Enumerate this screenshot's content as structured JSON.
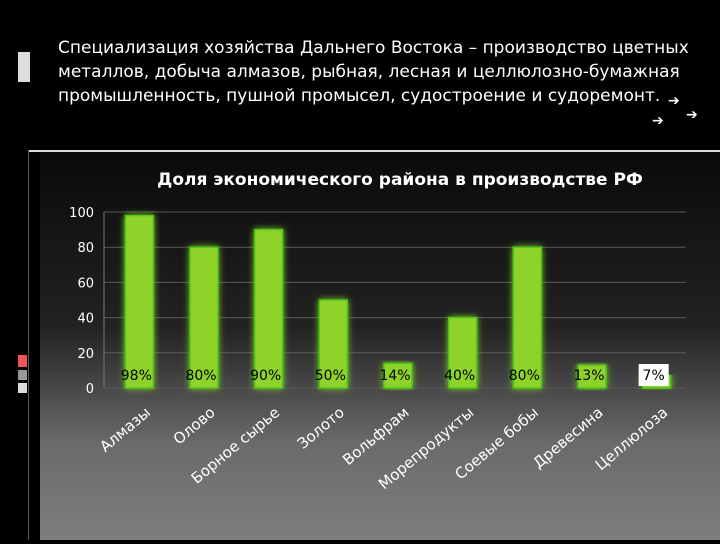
{
  "slide": {
    "header": "Специализация хозяйства Дальнего Востока – производство цветных металлов, добыча алмазов, рыбная, лесная и целлюлозно-бумажная промышленность, пушной промысел, судостроение и судоремонт.",
    "arrow_glyph": "➔"
  },
  "colors": {
    "bar_fill": "#8ed32a",
    "bar_glow": "#4fc41a",
    "background": "#000000",
    "text": "#ffffff"
  },
  "chart_data": {
    "type": "bar",
    "title": "Доля экономического района в производстве РФ",
    "categories": [
      "Алмазы",
      "Олово",
      "Борное сырье",
      "Золото",
      "Вольфрам",
      "Морепродукты",
      "Соевые бобы",
      "Древесина",
      "Целлюлоза"
    ],
    "values": [
      98,
      80,
      90,
      50,
      14,
      40,
      80,
      13,
      7
    ],
    "data_labels": [
      "98%",
      "80%",
      "90%",
      "50%",
      "14%",
      "40%",
      "80%",
      "13%",
      "7%"
    ],
    "y_ticks": [
      "0",
      "20",
      "40",
      "60",
      "80",
      "100"
    ],
    "ylim": [
      0,
      100
    ],
    "grid": true,
    "legend": "none"
  }
}
